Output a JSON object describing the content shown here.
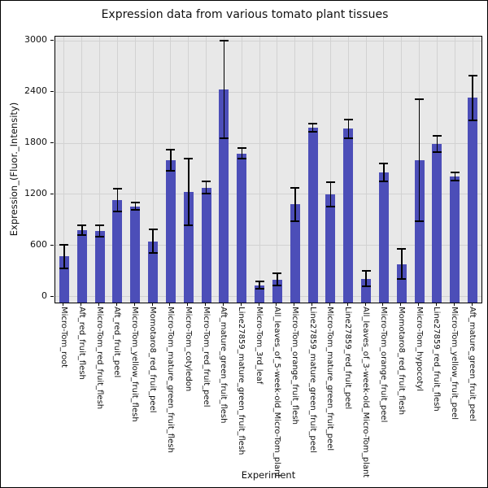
{
  "figure": {
    "title": "Expression data from various tomato plant tissues",
    "xlabel": "Experiment",
    "ylabel": "Expression_(Fluor._Intensity)"
  },
  "chart_data": {
    "type": "bar",
    "title": "Expression data from various tomato plant tissues",
    "xlabel": "Experiment",
    "ylabel": "Expression_(Fluor._Intensity)",
    "categories": [
      "Micro-Tom_root",
      "Aft_red_fruit_flesh",
      "Micro-Tom_red_fruit_flesh",
      "Aft_red_fruit_peel",
      "Micro-Tom_yellow_fruit_flesh",
      "Momotaro8_red_fruit_peel",
      "Micro-Tom_mature_green_fruit_flesh",
      "Micro-Tom_cotyledon",
      "Micro-Tom_red_fruit_peel",
      "Aft_mature_green_fruit_flesh",
      "Line27859_mature_green_fruit_flesh",
      "Micro-Tom_3rd_leaf",
      "All_leaves_of_5-week-old_Micro-Tom_plant",
      "Micro-Tom_orange_fruit_flesh",
      "Line27859_mature_green_fruit_peel",
      "Micro-Tom_mature_green_fruit_peel",
      "Line27859_red_fruit_peel",
      "All_leaves_of_3-week-old_Micro-Tom_plant",
      "Micro-Tom_orange_fruit_peel",
      "Momotaro8_red_fruit_flesh",
      "Micro-Tom_hypocotyl",
      "Line27859_red_fruit_flesh",
      "Micro-Tom_yellow_fruit_peel",
      "Aft_mature_green_fruit_peel"
    ],
    "values": [
      470,
      780,
      770,
      1130,
      1060,
      650,
      1600,
      1230,
      1280,
      2430,
      1680,
      135,
      200,
      1080,
      1980,
      1200,
      1970,
      210,
      1460,
      380,
      1600,
      1790,
      1410,
      2330
    ],
    "errors": [
      140,
      60,
      70,
      135,
      40,
      140,
      120,
      390,
      75,
      570,
      60,
      40,
      70,
      195,
      50,
      140,
      110,
      90,
      105,
      175,
      720,
      95,
      50,
      260
    ],
    "yticks": [
      0,
      600,
      1200,
      1800,
      2400,
      3000
    ],
    "ylim": [
      -70,
      3050
    ],
    "grid": true,
    "legend": "none",
    "colors": {
      "bar": "#4c4eb8",
      "plot_background": "#e8e8e8",
      "gridline": "#d2d2d2",
      "error_bar": "#000000",
      "text": "#111111",
      "frame": "#000000"
    }
  }
}
